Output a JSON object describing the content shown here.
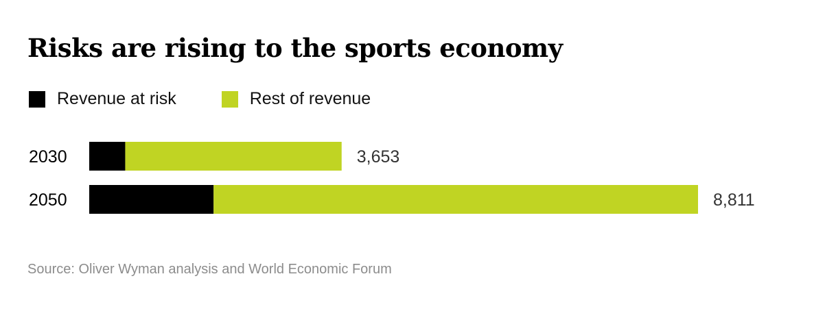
{
  "title": "Risks are rising to the sports economy",
  "source": "Source: Oliver Wyman analysis and World Economic Forum",
  "colors": {
    "at_risk": "#000000",
    "rest": "#c0d423"
  },
  "chart_data": {
    "type": "bar",
    "orientation": "horizontal",
    "stacked": true,
    "title": "Risks are rising to the sports economy",
    "legend_position": "top-left",
    "grid": false,
    "categories": [
      "2030",
      "2050"
    ],
    "series": [
      {
        "name": "Revenue at risk",
        "values": [
          521,
          1800
        ]
      },
      {
        "name": "Rest of revenue",
        "values": [
          3132,
          7011
        ]
      }
    ],
    "totals": [
      "3,653",
      "8,811"
    ],
    "total_values": [
      3653,
      8811
    ],
    "xlim": [
      0,
      8811
    ]
  }
}
